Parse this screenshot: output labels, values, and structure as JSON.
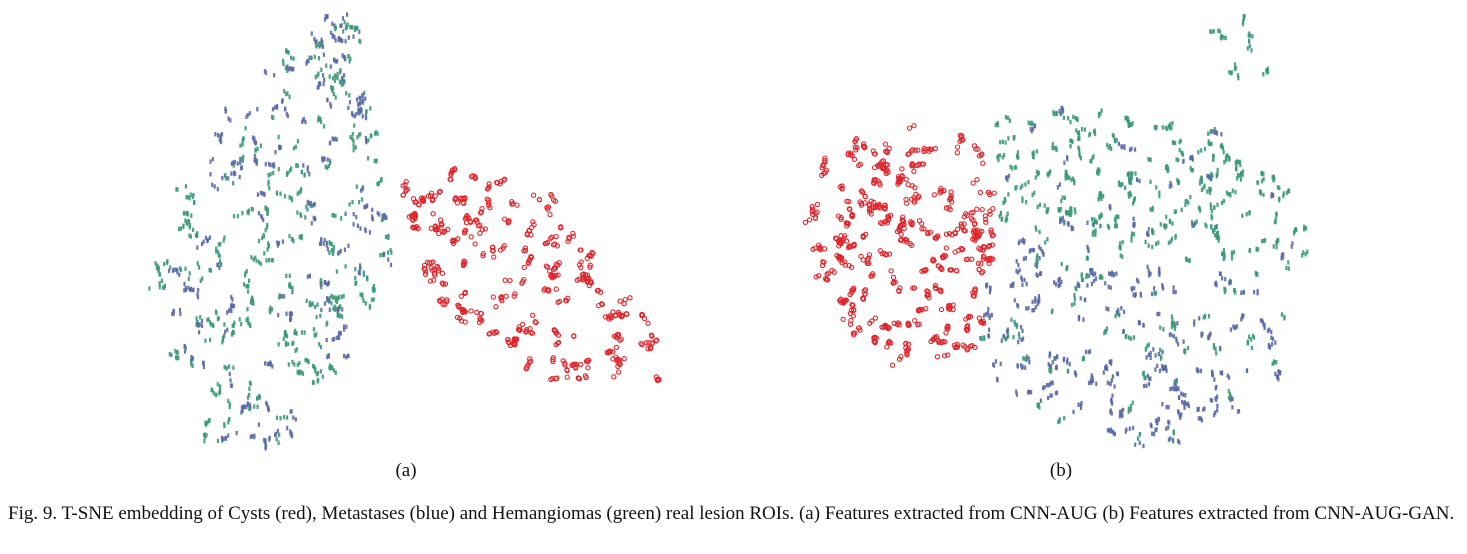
{
  "figure": {
    "panels": [
      {
        "label": "(a)"
      },
      {
        "label": "(b)"
      }
    ],
    "caption": "Fig. 9.  T-SNE embedding of Cysts (red), Metastases (blue) and Hemangiomas (green) real lesion ROIs. (a) Features extracted from CNN-AUG (b) Features extracted from CNN-AUG-GAN."
  },
  "colors": {
    "cysts": "#e0262c",
    "metastases": "#5a6aa8",
    "hemangiomas": "#3c9a78"
  },
  "chart_data": [
    {
      "type": "scatter",
      "title": "",
      "xlabel": "",
      "ylabel": "",
      "grid": false,
      "legend": "none",
      "series": [
        {
          "class": "cysts",
          "marker": "circle",
          "region": "right lobe"
        },
        {
          "class": "metastases",
          "marker": "glyph",
          "region": "left lobe, mixed"
        },
        {
          "class": "hemangiomas",
          "marker": "glyph",
          "region": "left lobe, mixed"
        }
      ]
    },
    {
      "type": "scatter",
      "title": "",
      "xlabel": "",
      "ylabel": "",
      "grid": false,
      "legend": "none",
      "series": [
        {
          "class": "cysts",
          "marker": "circle",
          "region": "left cluster"
        },
        {
          "class": "metastases",
          "marker": "glyph",
          "region": "lower right"
        },
        {
          "class": "hemangiomas",
          "marker": "glyph",
          "region": "upper right"
        }
      ]
    }
  ]
}
